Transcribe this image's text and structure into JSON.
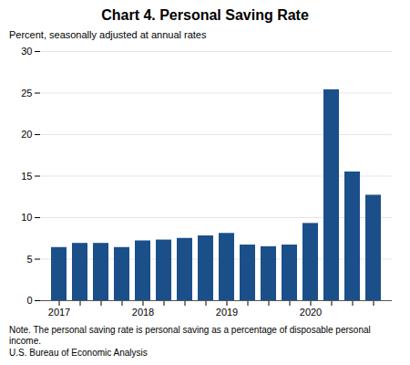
{
  "chart_data": {
    "type": "bar",
    "title": "Chart 4. Personal Saving Rate",
    "subtitle": "Percent, seasonally adjusted at annual rates",
    "notes": [
      "Note. The personal saving rate is personal saving as a percentage of disposable personal income.",
      "U.S. Bureau of Economic Analysis"
    ],
    "categories": [
      "2017",
      null,
      null,
      null,
      "2018",
      null,
      null,
      null,
      "2019",
      null,
      null,
      null,
      "2020",
      null,
      null,
      null
    ],
    "values": [
      6.4,
      6.9,
      6.9,
      6.4,
      7.2,
      7.3,
      7.5,
      7.8,
      8.1,
      6.7,
      6.5,
      6.7,
      9.3,
      25.4,
      15.5,
      12.7
    ],
    "color": "#1B4F8A",
    "ylim": [
      0,
      30
    ],
    "yticks": [
      0,
      5,
      10,
      15,
      20,
      25,
      30
    ],
    "grid": true
  }
}
